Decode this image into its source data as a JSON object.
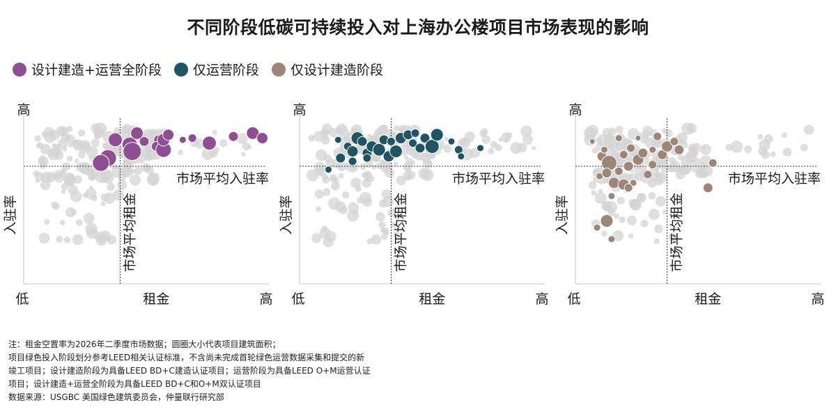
{
  "title": "不同阶段低碳可持续投入对上海办公楼项目市场表现的影响",
  "legend": [
    {
      "label": "设计建造+运营全阶段",
      "color": "#8e4e92"
    },
    {
      "label": "仅运营阶段",
      "color": "#1d5562"
    },
    {
      "label": "仅设计建造阶段",
      "color": "#9c8678"
    }
  ],
  "background_color": "#d4d4d4",
  "chart_data": [
    {
      "type": "scatter",
      "xlabel": "租金",
      "ylabel": "入驻率",
      "x_low": "低",
      "x_high": "高",
      "y_low": "低",
      "y_high": "高",
      "x_avg_label": "市场平均租金",
      "y_avg_label": "市场平均入驻率",
      "x_avg": 0.4,
      "y_avg": 0.71,
      "highlight_color": "#8e4e92",
      "highlight_points": [
        {
          "x": 0.35,
          "y": 0.76,
          "s": 12
        },
        {
          "x": 0.32,
          "y": 0.73,
          "s": 12
        },
        {
          "x": 0.38,
          "y": 0.87,
          "s": 10
        },
        {
          "x": 0.44,
          "y": 0.84,
          "s": 11
        },
        {
          "x": 0.45,
          "y": 0.8,
          "s": 13
        },
        {
          "x": 0.47,
          "y": 0.91,
          "s": 9
        },
        {
          "x": 0.5,
          "y": 0.86,
          "s": 7
        },
        {
          "x": 0.56,
          "y": 0.87,
          "s": 7
        },
        {
          "x": 0.55,
          "y": 0.83,
          "s": 7
        },
        {
          "x": 0.58,
          "y": 0.81,
          "s": 11
        },
        {
          "x": 0.58,
          "y": 0.87,
          "s": 9
        },
        {
          "x": 0.6,
          "y": 0.9,
          "s": 8
        },
        {
          "x": 0.66,
          "y": 0.87,
          "s": 5
        },
        {
          "x": 0.7,
          "y": 0.88,
          "s": 6
        },
        {
          "x": 0.77,
          "y": 0.85,
          "s": 10
        },
        {
          "x": 0.87,
          "y": 0.89,
          "s": 7
        },
        {
          "x": 0.95,
          "y": 0.91,
          "s": 9
        },
        {
          "x": 0.99,
          "y": 0.88,
          "s": 8
        }
      ]
    },
    {
      "type": "scatter",
      "xlabel": "租金",
      "ylabel": "入驻率",
      "x_low": "低",
      "x_high": "高",
      "y_low": "低",
      "y_high": "高",
      "x_avg_label": "市场平均租金",
      "y_avg_label": "市场平均入驻率",
      "x_avg": 0.38,
      "y_avg": 0.71,
      "highlight_color": "#1d5562",
      "highlight_points": [
        {
          "x": 0.12,
          "y": 0.69,
          "s": 5
        },
        {
          "x": 0.2,
          "y": 0.83,
          "s": 6
        },
        {
          "x": 0.17,
          "y": 0.76,
          "s": 7
        },
        {
          "x": 0.22,
          "y": 0.8,
          "s": 8
        },
        {
          "x": 0.24,
          "y": 0.88,
          "s": 9
        },
        {
          "x": 0.26,
          "y": 0.86,
          "s": 7
        },
        {
          "x": 0.22,
          "y": 0.74,
          "s": 6
        },
        {
          "x": 0.28,
          "y": 0.79,
          "s": 7
        },
        {
          "x": 0.3,
          "y": 0.83,
          "s": 8
        },
        {
          "x": 0.28,
          "y": 0.76,
          "s": 6
        },
        {
          "x": 0.33,
          "y": 0.81,
          "s": 9
        },
        {
          "x": 0.35,
          "y": 0.87,
          "s": 7
        },
        {
          "x": 0.37,
          "y": 0.77,
          "s": 8
        },
        {
          "x": 0.38,
          "y": 0.86,
          "s": 6
        },
        {
          "x": 0.4,
          "y": 0.8,
          "s": 9
        },
        {
          "x": 0.42,
          "y": 0.88,
          "s": 8
        },
        {
          "x": 0.45,
          "y": 0.9,
          "s": 7
        },
        {
          "x": 0.47,
          "y": 0.85,
          "s": 6
        },
        {
          "x": 0.5,
          "y": 0.82,
          "s": 7
        },
        {
          "x": 0.52,
          "y": 0.88,
          "s": 7
        },
        {
          "x": 0.55,
          "y": 0.83,
          "s": 10
        },
        {
          "x": 0.57,
          "y": 0.9,
          "s": 9
        },
        {
          "x": 0.48,
          "y": 0.91,
          "s": 6
        },
        {
          "x": 0.63,
          "y": 0.86,
          "s": 5
        },
        {
          "x": 0.66,
          "y": 0.81,
          "s": 6
        },
        {
          "x": 0.67,
          "y": 0.77,
          "s": 5
        },
        {
          "x": 0.75,
          "y": 0.82,
          "s": 5
        },
        {
          "x": 0.16,
          "y": 0.87,
          "s": 5
        }
      ]
    },
    {
      "type": "scatter",
      "xlabel": "租金",
      "ylabel": "入驻率",
      "x_low": "低",
      "x_high": "高",
      "y_low": "低",
      "y_high": "高",
      "x_avg_label": "市场平均租金",
      "y_avg_label": "市场平均入驻率",
      "x_avg": 0.38,
      "y_avg": 0.71,
      "highlight_color": "#9c8678",
      "highlight_points": [
        {
          "x": 0.07,
          "y": 0.86,
          "s": 4
        },
        {
          "x": 0.11,
          "y": 0.77,
          "s": 7
        },
        {
          "x": 0.1,
          "y": 0.65,
          "s": 5
        },
        {
          "x": 0.14,
          "y": 0.73,
          "s": 11
        },
        {
          "x": 0.13,
          "y": 0.67,
          "s": 7
        },
        {
          "x": 0.15,
          "y": 0.53,
          "s": 5
        },
        {
          "x": 0.16,
          "y": 0.61,
          "s": 8
        },
        {
          "x": 0.18,
          "y": 0.68,
          "s": 6
        },
        {
          "x": 0.2,
          "y": 0.78,
          "s": 6
        },
        {
          "x": 0.22,
          "y": 0.71,
          "s": 7
        },
        {
          "x": 0.24,
          "y": 0.61,
          "s": 5
        },
        {
          "x": 0.23,
          "y": 0.82,
          "s": 6
        },
        {
          "x": 0.26,
          "y": 0.75,
          "s": 8
        },
        {
          "x": 0.28,
          "y": 0.79,
          "s": 7
        },
        {
          "x": 0.3,
          "y": 0.66,
          "s": 6
        },
        {
          "x": 0.32,
          "y": 0.81,
          "s": 5
        },
        {
          "x": 0.34,
          "y": 0.89,
          "s": 6
        },
        {
          "x": 0.36,
          "y": 0.78,
          "s": 7
        },
        {
          "x": 0.38,
          "y": 0.83,
          "s": 8
        },
        {
          "x": 0.41,
          "y": 0.86,
          "s": 6
        },
        {
          "x": 0.43,
          "y": 0.81,
          "s": 7
        },
        {
          "x": 0.2,
          "y": 0.6,
          "s": 8
        },
        {
          "x": 0.22,
          "y": 0.58,
          "s": 6
        },
        {
          "x": 0.13,
          "y": 0.38,
          "s": 9
        },
        {
          "x": 0.15,
          "y": 0.27,
          "s": 5
        },
        {
          "x": 0.09,
          "y": 0.34,
          "s": 5
        },
        {
          "x": 0.32,
          "y": 0.72,
          "s": 6
        },
        {
          "x": 0.55,
          "y": 0.58,
          "s": 7
        },
        {
          "x": 0.57,
          "y": 0.73,
          "s": 6
        },
        {
          "x": 0.18,
          "y": 0.88,
          "s": 5
        },
        {
          "x": 0.26,
          "y": 0.88,
          "s": 4
        },
        {
          "x": 0.12,
          "y": 0.81,
          "s": 5
        }
      ]
    }
  ],
  "notes": [
    "注：租金空置率为2026年二季度市场数据；圆圈大小代表项目建筑面积；",
    "项目绿色投入阶段划分参考LEED相关认证标准，不含尚未完成首轮绿色运营数据采集和提交的新",
    "竣工项目；设计建造阶段为具备LEED BD+C建造认证项目；运营阶段为具备LEED O+M运营认证",
    "项目；设计建造+运营全阶段为具备LEED BD+C和O+M双认证项目",
    "数据来源：USGBC 美国绿色建筑委员会，仲量联行研究部"
  ]
}
